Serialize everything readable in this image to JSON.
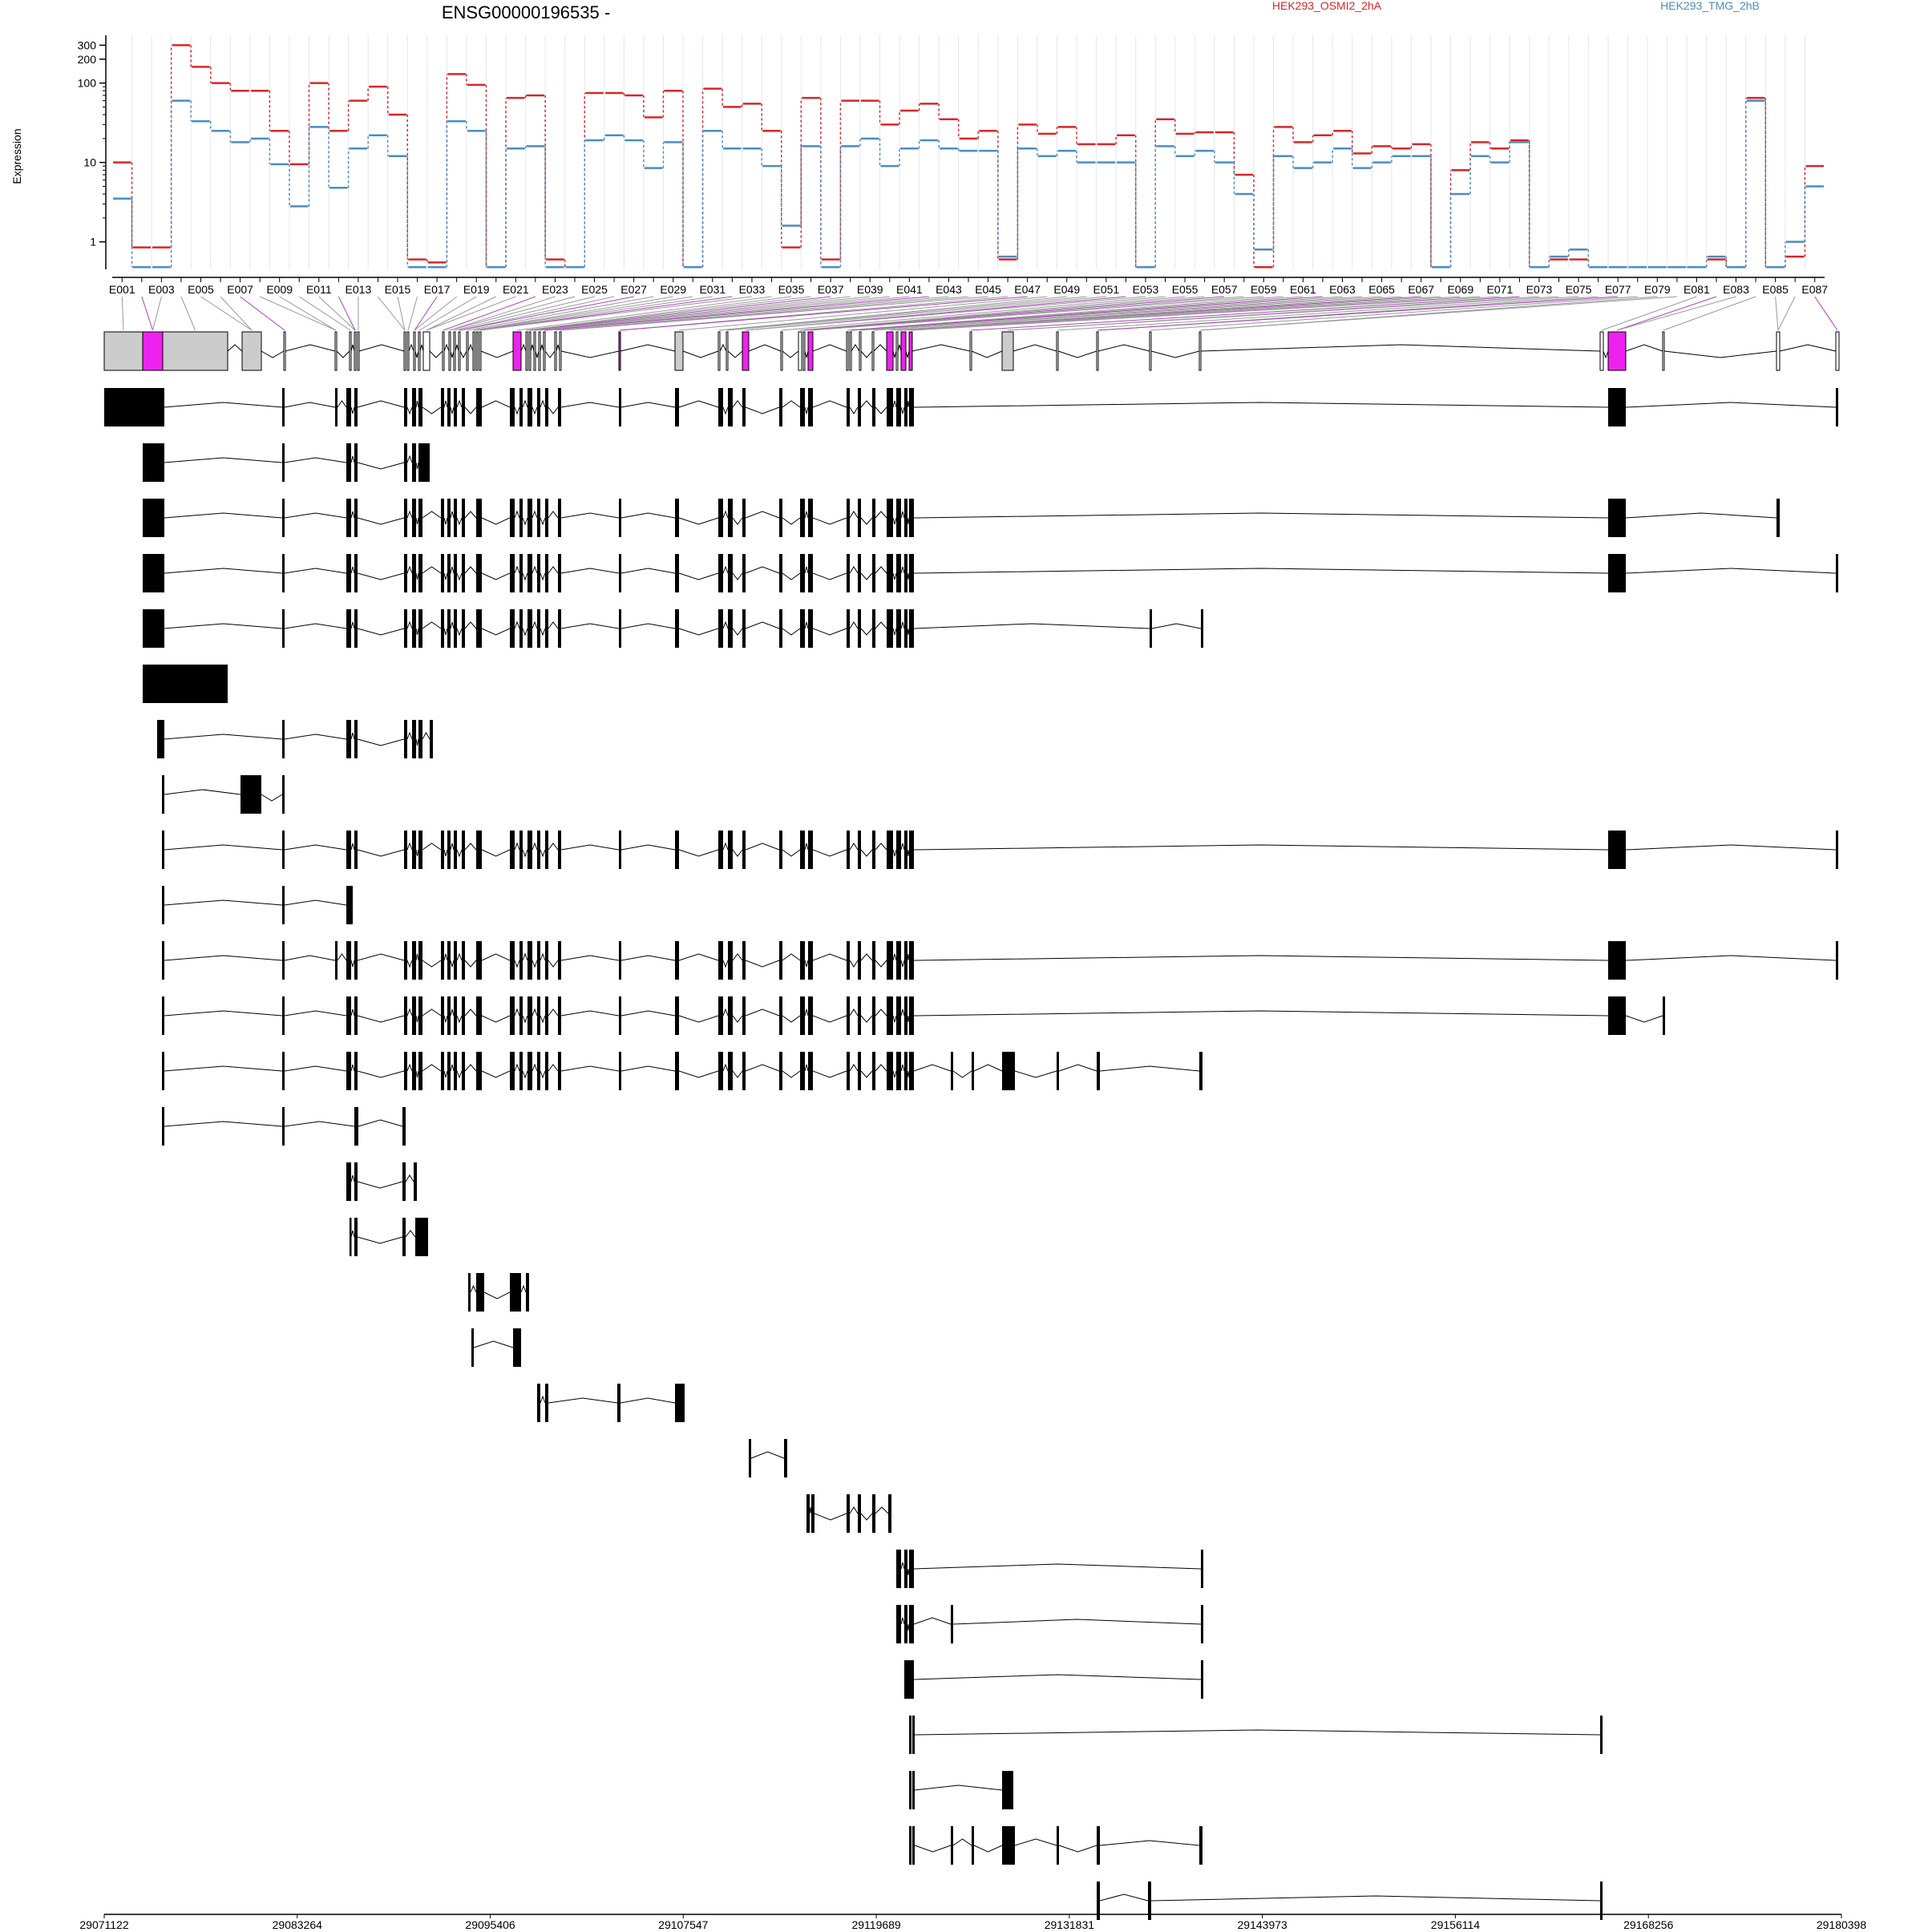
{
  "chart_data": [
    {
      "type": "line",
      "title": "ENSG00000196535 -",
      "ylabel": "Expression",
      "y_scale": "log",
      "ylim": [
        0.45,
        400
      ],
      "yticks": [
        1,
        10,
        100,
        200,
        300
      ],
      "ytick_labels": [
        "1",
        "10",
        "100",
        "200",
        "300"
      ],
      "grid": "faint vertical exon separators",
      "legend_placement": "top-right",
      "exon_labels": [
        "E001",
        "E003",
        "E005",
        "E007",
        "E009",
        "E011",
        "E013",
        "E015",
        "E017",
        "E019",
        "E021",
        "E023",
        "E025",
        "E027",
        "E029",
        "E031",
        "E033",
        "E035",
        "E037",
        "E039",
        "E041",
        "E043",
        "E045",
        "E047",
        "E049",
        "E051",
        "E053",
        "E055",
        "E057",
        "E059",
        "E061",
        "E063",
        "E065",
        "E067",
        "E069",
        "E071",
        "E073",
        "E075",
        "E077",
        "E079",
        "E081",
        "E083",
        "E085",
        "E087"
      ],
      "series": [
        {
          "name": "HEK293_OSMI2_2hA",
          "color": "#d62728",
          "values": [
            10,
            0.85,
            0.85,
            300,
            160,
            100,
            80,
            80,
            25,
            9.5,
            100,
            25,
            60,
            90,
            40,
            0.6,
            0.55,
            130,
            95,
            0.48,
            65,
            70,
            0.6,
            0.48,
            75,
            75,
            70,
            37,
            80,
            0.48,
            85,
            50,
            55,
            25,
            0.85,
            65,
            0.6,
            60,
            60,
            30,
            45,
            55,
            35,
            20,
            25,
            0.6,
            30,
            23,
            28,
            17,
            17,
            22,
            0.48,
            35,
            23,
            24,
            24,
            7,
            0.48,
            28,
            18,
            22,
            25,
            13,
            16,
            15,
            17,
            0.48,
            8,
            18,
            15,
            19,
            0.48,
            0.6,
            0.6,
            0.48,
            0.48,
            0.48,
            0.48,
            0.48,
            0.48,
            0.6,
            0.48,
            65,
            0.48,
            0.65,
            9
          ]
        },
        {
          "name": "HEK293_TMG_2hB",
          "color": "#4a8cc4",
          "values": [
            3.5,
            0.48,
            0.48,
            60,
            33,
            25,
            18,
            20,
            9.5,
            2.8,
            28,
            4.8,
            15,
            22,
            12,
            0.48,
            0.48,
            33,
            25,
            0.48,
            15,
            16,
            0.48,
            0.48,
            19,
            22,
            19,
            8.5,
            18,
            0.48,
            25,
            15,
            15,
            9,
            1.6,
            16,
            0.48,
            16,
            20,
            9,
            15,
            19,
            15,
            14,
            14,
            0.65,
            15,
            12,
            14,
            10,
            10,
            10,
            0.48,
            16,
            12,
            14,
            10,
            4,
            0.8,
            12,
            8.5,
            10,
            15,
            8.5,
            10,
            12,
            12,
            0.48,
            4,
            12,
            10,
            18,
            0.48,
            0.65,
            0.8,
            0.48,
            0.48,
            0.48,
            0.48,
            0.48,
            0.48,
            0.65,
            0.48,
            60,
            0.48,
            1,
            5
          ]
        }
      ]
    },
    {
      "type": "gene_model",
      "xlabel": "",
      "xlim": [
        29071122,
        29180398
      ],
      "xticks": [
        29071122,
        29083264,
        29095406,
        29107547,
        29119689,
        29131831,
        29143973,
        29156114,
        29168256,
        29180398
      ],
      "xtick_labels": [
        "29071122",
        "29083264",
        "29095406",
        "29107547",
        "29119689",
        "29131831",
        "29143973",
        "29156114",
        "29168256",
        "29180398"
      ],
      "track_count": 29,
      "highlight_color": "#ee22ee",
      "exon_fill": "#cccccc",
      "transcript_fill": "#000000"
    }
  ]
}
